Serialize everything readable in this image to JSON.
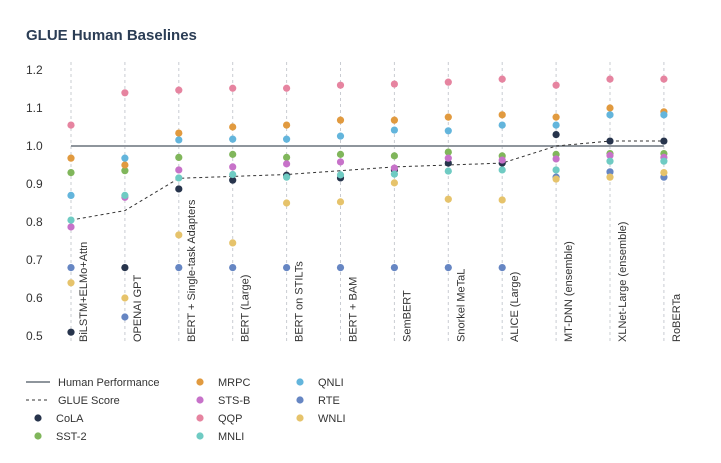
{
  "chart_data": {
    "type": "scatter",
    "title": "GLUE Human Baselines",
    "xlabel": "",
    "ylabel": "",
    "ylim": [
      0.48,
      1.22
    ],
    "yticks": [
      0.5,
      0.6,
      0.7,
      0.8,
      0.9,
      1.0,
      1.1,
      1.2
    ],
    "ytick_labels": [
      "0.5",
      "0.6",
      "0.7",
      "0.8",
      "0.9",
      "1.0",
      "1.1",
      "1.2"
    ],
    "categories": [
      "BiLSTM+ELMo+Attn",
      "OPENAI GPT",
      "BERT + Single-task Adapters",
      "BERT (Large)",
      "BERT on STILTs",
      "BERT + BAM",
      "SemBERT",
      "Snorkel MeTaL",
      "ALICE (Large)",
      "MT-DNN (ensemble)",
      "XLNet-Large (ensemble)",
      "RoBERTa"
    ],
    "human_performance": {
      "name": "Human Performance",
      "value": 1.0,
      "color": "#8e959c"
    },
    "glue_score": {
      "name": "GLUE Score",
      "values": [
        0.805,
        0.83,
        0.915,
        0.92,
        0.925,
        0.935,
        0.945,
        0.95,
        0.955,
        1.0,
        1.013,
        1.013
      ],
      "color": "#333333"
    },
    "series": [
      {
        "name": "CoLA",
        "color": "#27344c",
        "values": [
          0.51,
          0.68,
          0.887,
          0.91,
          0.923,
          0.916,
          0.937,
          0.955,
          0.955,
          1.03,
          1.013,
          1.013
        ]
      },
      {
        "name": "SST-2",
        "color": "#80b65b",
        "values": [
          0.93,
          0.935,
          0.97,
          0.978,
          0.97,
          0.978,
          0.974,
          0.984,
          0.974,
          0.978,
          0.98,
          0.98
        ]
      },
      {
        "name": "MRPC",
        "color": "#e19a3f",
        "values": [
          0.968,
          0.95,
          1.034,
          1.05,
          1.055,
          1.068,
          1.068,
          1.076,
          1.082,
          1.076,
          1.1,
          1.09
        ]
      },
      {
        "name": "STS-B",
        "color": "#c772c9",
        "values": [
          0.787,
          0.865,
          0.937,
          0.945,
          0.953,
          0.958,
          0.942,
          0.968,
          0.963,
          0.966,
          0.975,
          0.97
        ]
      },
      {
        "name": "QQP",
        "color": "#e684a0",
        "values": [
          1.055,
          1.14,
          1.147,
          1.152,
          1.152,
          1.16,
          1.163,
          1.168,
          1.176,
          1.16,
          1.176,
          1.176
        ]
      },
      {
        "name": "MNLI",
        "color": "#6fcbc3",
        "values": [
          0.805,
          0.87,
          0.916,
          0.925,
          0.918,
          0.924,
          0.926,
          0.934,
          0.937,
          0.937,
          0.96,
          0.96
        ]
      },
      {
        "name": "QNLI",
        "color": "#63b5dc",
        "values": [
          0.87,
          0.968,
          1.016,
          1.018,
          1.018,
          1.026,
          1.042,
          1.04,
          1.055,
          1.055,
          1.082,
          1.082
        ]
      },
      {
        "name": "RTE",
        "color": "#6686c3",
        "values": [
          0.68,
          0.55,
          0.68,
          0.68,
          0.68,
          0.68,
          0.68,
          0.68,
          0.68,
          0.918,
          0.932,
          0.918
        ]
      },
      {
        "name": "WNLI",
        "color": "#e6c36b",
        "values": [
          0.64,
          0.6,
          0.766,
          0.745,
          0.85,
          0.853,
          0.903,
          0.86,
          0.858,
          0.913,
          0.918,
          0.93
        ]
      }
    ],
    "legend_placement": "bottom-left",
    "grid": "vertical dashed per category"
  }
}
